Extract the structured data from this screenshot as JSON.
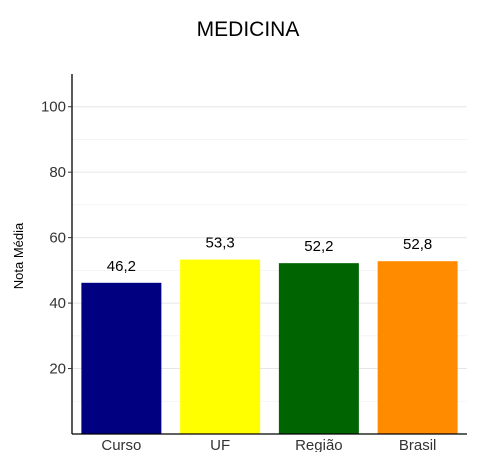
{
  "chart_data": {
    "type": "bar",
    "title": "MEDICINA",
    "ylabel": "Nota Média",
    "xlabel": "",
    "categories": [
      "Curso",
      "UF",
      "Região",
      "Brasil"
    ],
    "values": [
      46.2,
      53.3,
      52.2,
      52.8
    ],
    "value_labels": [
      "46,2",
      "53,3",
      "52,2",
      "52,8"
    ],
    "colors": [
      "#000080",
      "#ffff00",
      "#006400",
      "#ff8c00"
    ],
    "ylim": [
      0,
      110
    ],
    "yticks": [
      20,
      40,
      60,
      80,
      100
    ],
    "grid": true
  }
}
